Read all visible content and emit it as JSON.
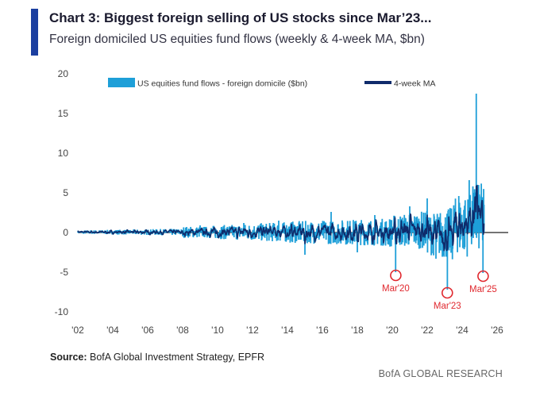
{
  "header": {
    "title": "Chart 3: Biggest foreign selling of US stocks since Mar’23...",
    "subtitle": "Foreign domiciled US equities fund flows (weekly & 4-week MA, $bn)"
  },
  "footer": {
    "source_label": "Source:",
    "source_text": " BofA Global Investment Strategy, EPFR",
    "brand": "BofA GLOBAL RESEARCH"
  },
  "colors": {
    "accent": "#1b3fa0",
    "weekly": "#1e9fd8",
    "ma": "#0f2b6b",
    "annotation": "#e0282e"
  },
  "chart_data": {
    "type": "bar+line",
    "y_ticks": [
      "20",
      "15",
      "10",
      "5",
      "0",
      "-5",
      "-10"
    ],
    "ylim": [
      -10,
      20
    ],
    "x_ticks": [
      "'02",
      "'04",
      "'06",
      "'08",
      "'10",
      "'12",
      "'14",
      "'16",
      "'18",
      "'20",
      "'22",
      "'24",
      "'26"
    ],
    "xlim": [
      2002,
      2026
    ],
    "series": [
      {
        "name": "US equities fund flows - foreign domicile ($bn)",
        "type": "bar",
        "approximate_points": [
          [
            2002.0,
            0.1
          ],
          [
            2004.0,
            -0.2
          ],
          [
            2006.0,
            0.2
          ],
          [
            2008.0,
            -0.4
          ],
          [
            2009.0,
            0.9
          ],
          [
            2010.0,
            -0.7
          ],
          [
            2011.5,
            1.2
          ],
          [
            2013.5,
            1.5
          ],
          [
            2015.0,
            -2.8
          ],
          [
            2016.5,
            2.6
          ],
          [
            2018.0,
            -2.5
          ],
          [
            2019.0,
            2.2
          ],
          [
            2020.2,
            -5.0
          ],
          [
            2021.0,
            3.3
          ],
          [
            2022.0,
            4.3
          ],
          [
            2022.5,
            -3.3
          ],
          [
            2023.15,
            -7.2
          ],
          [
            2023.8,
            4.6
          ],
          [
            2024.4,
            6.6
          ],
          [
            2024.8,
            17.5
          ],
          [
            2025.2,
            -5.1
          ]
        ]
      },
      {
        "name": "4-week MA",
        "type": "line",
        "approximate_points": [
          [
            2002.0,
            0.0
          ],
          [
            2006.0,
            0.1
          ],
          [
            2008.5,
            -0.2
          ],
          [
            2010.0,
            0.2
          ],
          [
            2012.0,
            0.4
          ],
          [
            2014.0,
            0.3
          ],
          [
            2015.0,
            -0.6
          ],
          [
            2016.5,
            0.6
          ],
          [
            2018.0,
            -0.3
          ],
          [
            2020.2,
            -1.5
          ],
          [
            2021.5,
            1.4
          ],
          [
            2022.6,
            -1.3
          ],
          [
            2023.15,
            -2.6
          ],
          [
            2024.2,
            2.6
          ],
          [
            2024.7,
            6.0
          ],
          [
            2024.9,
            10.8
          ],
          [
            2025.2,
            2.0
          ]
        ]
      }
    ],
    "annotations": [
      {
        "label": "Mar'20",
        "x": 2020.2,
        "y": -5.0
      },
      {
        "label": "Mar'23",
        "x": 2023.15,
        "y": -7.2
      },
      {
        "label": "Mar'25",
        "x": 2025.2,
        "y": -5.1
      }
    ],
    "legend_position": "top-center"
  }
}
